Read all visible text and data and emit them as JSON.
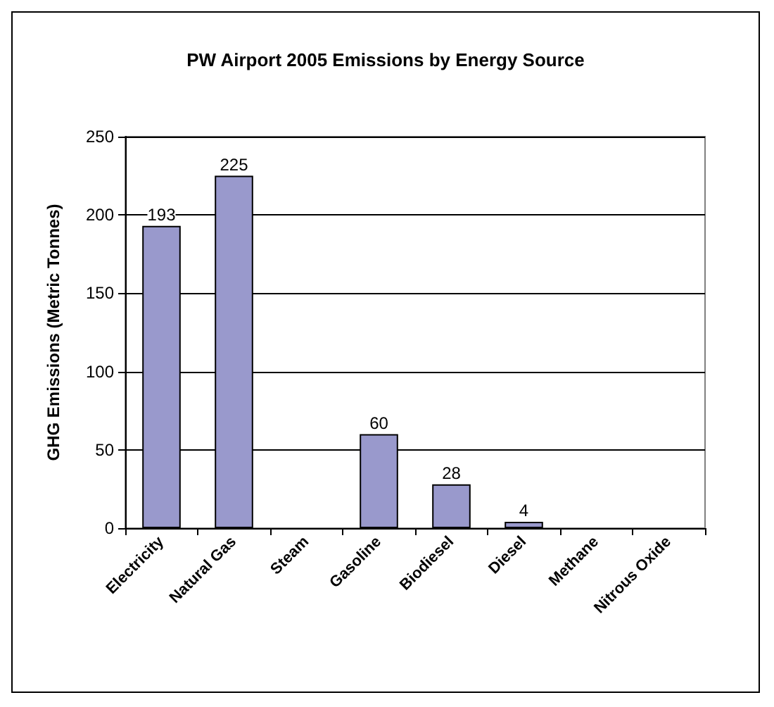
{
  "chart_data": {
    "type": "bar",
    "title": "PW Airport 2005 Emissions by Energy Source",
    "ylabel": "GHG Emissions (Metric Tonnes)",
    "categories": [
      "Electricity",
      "Natural Gas",
      "Steam",
      "Gasoline",
      "Biodiesel",
      "Diesel",
      "Methane",
      "Nitrous Oxide"
    ],
    "values": [
      193,
      225,
      0,
      60,
      28,
      4,
      0,
      0
    ],
    "value_labels": [
      "193",
      "225",
      null,
      "60",
      "28",
      "4",
      null,
      null
    ],
    "color": "#9999cc",
    "ylim": [
      0,
      250
    ],
    "yticks": [
      0,
      50,
      100,
      150,
      200,
      250
    ],
    "grid": "y"
  }
}
